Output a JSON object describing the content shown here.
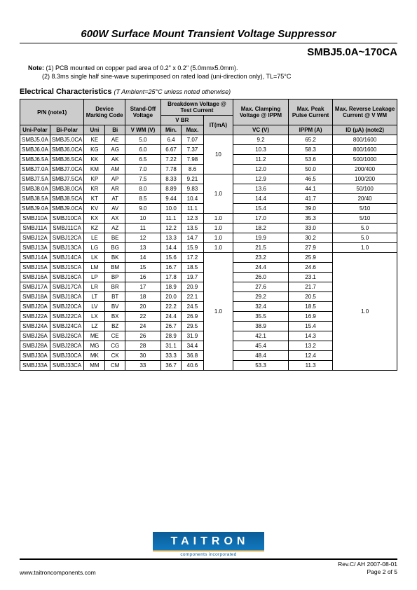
{
  "title": "600W Surface Mount Transient Voltage Suppressor",
  "subtitle": "SMBJ5.0A~170CA",
  "notes": {
    "label": "Note:",
    "n1": "(1) PCB mounted on copper pad area of 0.2\" x 0.2\" (5.0mmx5.0mm).",
    "n2": "(2) 8.3ms single half sine-wave superimposed on rated load (uni-direction only), TL=75°C"
  },
  "section_title": "Electrical Characteristics",
  "section_cond": "(T Ambient=25°C unless noted otherwise)",
  "headers": {
    "pn": "P/N  (note1)",
    "dmc": "Device Marking Code",
    "standoff": "Stand-Off Voltage",
    "bv": "Breakdown Voltage @ Test Current",
    "vbr": "V BR",
    "it": "IT(mA)",
    "maxclamp": "Max. Clamping Voltage @ IPPM",
    "maxpeak": "Max. Peak Pulse Current",
    "maxrev": "Max. Reverse Leakage Current @ V WM",
    "uni": "Uni-Polar",
    "bi": "Bi-Polar",
    "uni2": "Uni",
    "bi2": "Bi",
    "vwm": "V WM (V)",
    "min": "Min.",
    "max": "Max.",
    "vc": "VC (V)",
    "ippm": "IPPM (A)",
    "id": "ID (µA) (note2)"
  },
  "rows": [
    {
      "uni": "SMBJ5.0A",
      "bi": "SMBJ5.0CA",
      "cu": "KE",
      "cb": "AE",
      "vwm": "5.0",
      "min": "6.4",
      "max": "7.07",
      "it": "",
      "vc": "9.2",
      "ippm": "65.2",
      "id": "800/1600"
    },
    {
      "uni": "SMBJ6.0A",
      "bi": "SMBJ6.0CA",
      "cu": "KG",
      "cb": "AG",
      "vwm": "6.0",
      "min": "6.67",
      "max": "7.37",
      "it": "",
      "vc": "10.3",
      "ippm": "58.3",
      "id": "800/1600"
    },
    {
      "uni": "SMBJ6.5A",
      "bi": "SMBJ6.5CA",
      "cu": "KK",
      "cb": "AK",
      "vwm": "6.5",
      "min": "7.22",
      "max": "7.98",
      "it": "",
      "vc": "11.2",
      "ippm": "53.6",
      "id": "500/1000"
    },
    {
      "uni": "SMBJ7.0A",
      "bi": "SMBJ7.0CA",
      "cu": "KM",
      "cb": "AM",
      "vwm": "7.0",
      "min": "7.78",
      "max": "8.6",
      "it": "",
      "vc": "12.0",
      "ippm": "50.0",
      "id": "200/400"
    },
    {
      "uni": "SMBJ7.5A",
      "bi": "SMBJ7.5CA",
      "cu": "KP",
      "cb": "AP",
      "vwm": "7.5",
      "min": "8.33",
      "max": "9.21",
      "it": "",
      "vc": "12.9",
      "ippm": "46.5",
      "id": "100/200"
    },
    {
      "uni": "SMBJ8.0A",
      "bi": "SMBJ8.0CA",
      "cu": "KR",
      "cb": "AR",
      "vwm": "8.0",
      "min": "8.89",
      "max": "9.83",
      "it": "",
      "vc": "13.6",
      "ippm": "44.1",
      "id": "50/100"
    },
    {
      "uni": "SMBJ8.5A",
      "bi": "SMBJ8.5CA",
      "cu": "KT",
      "cb": "AT",
      "vwm": "8.5",
      "min": "9.44",
      "max": "10.4",
      "it": "",
      "vc": "14.4",
      "ippm": "41.7",
      "id": "20/40"
    },
    {
      "uni": "SMBJ9.0A",
      "bi": "SMBJ9.0CA",
      "cu": "KV",
      "cb": "AV",
      "vwm": "9.0",
      "min": "10.0",
      "max": "11.1",
      "it": "",
      "vc": "15.4",
      "ippm": "39.0",
      "id": "5/10"
    },
    {
      "uni": "SMBJ10A",
      "bi": "SMBJ10CA",
      "cu": "KX",
      "cb": "AX",
      "vwm": "10",
      "min": "11.1",
      "max": "12.3",
      "it": "1.0",
      "vc": "17.0",
      "ippm": "35.3",
      "id": "5/10"
    },
    {
      "uni": "SMBJ11A",
      "bi": "SMBJ11CA",
      "cu": "KZ",
      "cb": "AZ",
      "vwm": "11",
      "min": "12.2",
      "max": "13.5",
      "it": "1.0",
      "vc": "18.2",
      "ippm": "33.0",
      "id": "5.0"
    },
    {
      "uni": "SMBJ12A",
      "bi": "SMBJ12CA",
      "cu": "LE",
      "cb": "BE",
      "vwm": "12",
      "min": "13.3",
      "max": "14.7",
      "it": "1.0",
      "vc": "19.9",
      "ippm": "30.2",
      "id": "5.0"
    },
    {
      "uni": "SMBJ13A",
      "bi": "SMBJ13CA",
      "cu": "LG",
      "cb": "BG",
      "vwm": "13",
      "min": "14.4",
      "max": "15.9",
      "it": "1.0",
      "vc": "21.5",
      "ippm": "27.9",
      "id": "1.0"
    },
    {
      "uni": "SMBJ14A",
      "bi": "SMBJ14CA",
      "cu": "LK",
      "cb": "BK",
      "vwm": "14",
      "min": "15.6",
      "max": "17.2",
      "it": "",
      "vc": "23.2",
      "ippm": "25.9",
      "id": ""
    },
    {
      "uni": "SMBJ15A",
      "bi": "SMBJ15CA",
      "cu": "LM",
      "cb": "BM",
      "vwm": "15",
      "min": "16.7",
      "max": "18.5",
      "it": "",
      "vc": "24.4",
      "ippm": "24.6",
      "id": ""
    },
    {
      "uni": "SMBJ16A",
      "bi": "SMBJ16CA",
      "cu": "LP",
      "cb": "BP",
      "vwm": "16",
      "min": "17.8",
      "max": "19.7",
      "it": "",
      "vc": "26.0",
      "ippm": "23.1",
      "id": ""
    },
    {
      "uni": "SMBJ17A",
      "bi": "SMBJ17CA",
      "cu": "LR",
      "cb": "BR",
      "vwm": "17",
      "min": "18.9",
      "max": "20.9",
      "it": "",
      "vc": "27.6",
      "ippm": "21.7",
      "id": ""
    },
    {
      "uni": "SMBJ18A",
      "bi": "SMBJ18CA",
      "cu": "LT",
      "cb": "BT",
      "vwm": "18",
      "min": "20.0",
      "max": "22.1",
      "it": "",
      "vc": "29.2",
      "ippm": "20.5",
      "id": ""
    },
    {
      "uni": "SMBJ20A",
      "bi": "SMBJ20CA",
      "cu": "LV",
      "cb": "BV",
      "vwm": "20",
      "min": "22.2",
      "max": "24.5",
      "it": "",
      "vc": "32.4",
      "ippm": "18.5",
      "id": ""
    },
    {
      "uni": "SMBJ22A",
      "bi": "SMBJ22CA",
      "cu": "LX",
      "cb": "BX",
      "vwm": "22",
      "min": "24.4",
      "max": "26.9",
      "it": "",
      "vc": "35.5",
      "ippm": "16.9",
      "id": ""
    },
    {
      "uni": "SMBJ24A",
      "bi": "SMBJ24CA",
      "cu": "LZ",
      "cb": "BZ",
      "vwm": "24",
      "min": "26.7",
      "max": "29.5",
      "it": "",
      "vc": "38.9",
      "ippm": "15.4",
      "id": ""
    },
    {
      "uni": "SMBJ26A",
      "bi": "SMBJ26CA",
      "cu": "ME",
      "cb": "CE",
      "vwm": "26",
      "min": "28.9",
      "max": "31.9",
      "it": "",
      "vc": "42.1",
      "ippm": "14.3",
      "id": ""
    },
    {
      "uni": "SMBJ28A",
      "bi": "SMBJ28CA",
      "cu": "MG",
      "cb": "CG",
      "vwm": "28",
      "min": "31.1",
      "max": "34.4",
      "it": "",
      "vc": "45.4",
      "ippm": "13.2",
      "id": ""
    },
    {
      "uni": "SMBJ30A",
      "bi": "SMBJ30CA",
      "cu": "MK",
      "cb": "CK",
      "vwm": "30",
      "min": "33.3",
      "max": "36.8",
      "it": "",
      "vc": "48.4",
      "ippm": "12.4",
      "id": ""
    },
    {
      "uni": "SMBJ33A",
      "bi": "SMBJ33CA",
      "cu": "MM",
      "cb": "CM",
      "vwm": "33",
      "min": "36.7",
      "max": "40.6",
      "it": "",
      "vc": "53.3",
      "ippm": "11.3",
      "id": ""
    }
  ],
  "it_group1": "10",
  "it_group2": "1.0",
  "it_group3": "1.0",
  "id_group3": "1.0",
  "footer": {
    "url": "www.taitroncomponents.com",
    "rev": "Rev.C/ AH 2007-08-01",
    "page": "Page 2 of 5",
    "logo": "TAITRON",
    "logo_sub": "components incorporated"
  }
}
